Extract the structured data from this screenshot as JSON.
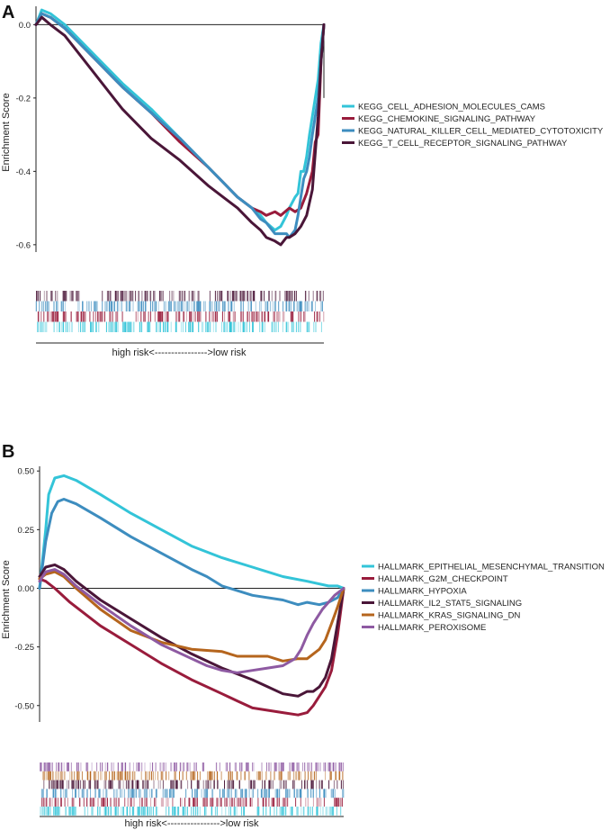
{
  "chart_data": [
    {
      "type": "line",
      "panel_label": "A",
      "ylabel": "Enrichment Score",
      "xlabel": "high risk<---------------->low risk",
      "ylim": [
        -0.62,
        0.05
      ],
      "yticks": [
        "0.0",
        "-0.2",
        "-0.4",
        "-0.6"
      ],
      "ytick_values": [
        0.0,
        -0.2,
        -0.4,
        -0.6
      ],
      "legend_position": "right",
      "x_range": [
        0,
        100
      ],
      "series": [
        {
          "name": "KEGG_CELL_ADHESION_MOLECULES_CAMS",
          "color": "#33c4d8",
          "x": [
            0,
            2,
            5,
            10,
            20,
            30,
            40,
            50,
            60,
            65,
            70,
            75,
            78,
            80,
            83,
            85,
            87,
            88,
            90,
            91,
            92,
            93,
            94,
            95,
            96,
            97,
            98,
            99,
            100
          ],
          "y": [
            0.0,
            0.04,
            0.03,
            0.0,
            -0.08,
            -0.16,
            -0.23,
            -0.31,
            -0.39,
            -0.43,
            -0.47,
            -0.5,
            -0.52,
            -0.54,
            -0.56,
            -0.55,
            -0.52,
            -0.5,
            -0.47,
            -0.46,
            -0.4,
            -0.4,
            -0.36,
            -0.3,
            -0.25,
            -0.2,
            -0.15,
            -0.05,
            0.0
          ]
        },
        {
          "name": "KEGG_CHEMOKINE_SIGNALING_PATHWAY",
          "color": "#991c3c",
          "x": [
            0,
            2,
            5,
            10,
            20,
            30,
            40,
            50,
            60,
            65,
            70,
            75,
            78,
            80,
            83,
            85,
            88,
            90,
            92,
            94,
            96,
            97,
            98,
            99,
            100
          ],
          "y": [
            0.0,
            0.03,
            0.02,
            -0.01,
            -0.09,
            -0.17,
            -0.24,
            -0.32,
            -0.39,
            -0.43,
            -0.47,
            -0.5,
            -0.51,
            -0.52,
            -0.51,
            -0.52,
            -0.5,
            -0.51,
            -0.5,
            -0.46,
            -0.4,
            -0.32,
            -0.3,
            -0.1,
            0.0
          ]
        },
        {
          "name": "KEGG_NATURAL_KILLER_CELL_MEDIATED_CYTOTOXICITY",
          "color": "#3d8dbf",
          "x": [
            0,
            2,
            5,
            10,
            20,
            30,
            40,
            50,
            60,
            65,
            70,
            75,
            78,
            80,
            83,
            85,
            87,
            88,
            90,
            91,
            92,
            93,
            94,
            95,
            96,
            97,
            98,
            99,
            100
          ],
          "y": [
            0.0,
            0.03,
            0.02,
            -0.01,
            -0.09,
            -0.17,
            -0.24,
            -0.31,
            -0.39,
            -0.43,
            -0.47,
            -0.5,
            -0.53,
            -0.54,
            -0.57,
            -0.57,
            -0.57,
            -0.58,
            -0.56,
            -0.52,
            -0.47,
            -0.42,
            -0.4,
            -0.36,
            -0.3,
            -0.25,
            -0.2,
            -0.1,
            0.0
          ]
        },
        {
          "name": "KEGG_T_CELL_RECEPTOR_SIGNALING_PATHWAY",
          "color": "#4a1638",
          "x": [
            0,
            2,
            5,
            10,
            20,
            30,
            40,
            50,
            60,
            65,
            70,
            75,
            78,
            80,
            83,
            85,
            87,
            88,
            90,
            92,
            94,
            96,
            97,
            98,
            99,
            100
          ],
          "y": [
            0.0,
            0.02,
            0.0,
            -0.03,
            -0.13,
            -0.23,
            -0.31,
            -0.37,
            -0.44,
            -0.47,
            -0.5,
            -0.54,
            -0.56,
            -0.58,
            -0.59,
            -0.6,
            -0.58,
            -0.58,
            -0.57,
            -0.55,
            -0.52,
            -0.45,
            -0.35,
            -0.25,
            -0.1,
            0.0
          ]
        }
      ]
    },
    {
      "type": "line",
      "panel_label": "B",
      "ylabel": "Enrichment Score",
      "xlabel": "high risk<---------------->low risk",
      "ylim": [
        -0.57,
        0.52
      ],
      "yticks": [
        "0.50",
        "0.25",
        "0.00",
        "-0.25",
        "-0.50"
      ],
      "ytick_values": [
        0.5,
        0.25,
        0.0,
        -0.25,
        -0.5
      ],
      "legend_position": "right",
      "x_range": [
        0,
        100
      ],
      "series": [
        {
          "name": "HALLMARK_EPITHELIAL_MESENCHYMAL_TRANSITION",
          "color": "#33c4d8",
          "x": [
            0,
            2,
            3,
            5,
            8,
            12,
            20,
            30,
            40,
            50,
            60,
            70,
            80,
            88,
            95,
            98,
            100
          ],
          "y": [
            0.0,
            0.25,
            0.4,
            0.47,
            0.48,
            0.46,
            0.4,
            0.32,
            0.25,
            0.18,
            0.13,
            0.09,
            0.05,
            0.03,
            0.01,
            0.01,
            0.0
          ]
        },
        {
          "name": "HALLMARK_G2M_CHECKPOINT",
          "color": "#991c3c",
          "x": [
            0,
            2,
            5,
            10,
            20,
            30,
            40,
            50,
            60,
            65,
            70,
            75,
            80,
            85,
            88,
            90,
            92,
            94,
            96,
            98,
            100
          ],
          "y": [
            0.04,
            0.03,
            0.0,
            -0.06,
            -0.16,
            -0.24,
            -0.32,
            -0.39,
            -0.45,
            -0.48,
            -0.51,
            -0.52,
            -0.53,
            -0.54,
            -0.53,
            -0.5,
            -0.46,
            -0.42,
            -0.35,
            -0.2,
            0.0
          ]
        },
        {
          "name": "HALLMARK_HYPOXIA",
          "color": "#3d8dbf",
          "x": [
            0,
            2,
            4,
            6,
            8,
            12,
            20,
            30,
            40,
            50,
            55,
            60,
            70,
            80,
            85,
            88,
            92,
            95,
            98,
            100
          ],
          "y": [
            0.0,
            0.2,
            0.32,
            0.37,
            0.38,
            0.36,
            0.3,
            0.22,
            0.15,
            0.08,
            0.05,
            0.01,
            -0.03,
            -0.05,
            -0.07,
            -0.06,
            -0.07,
            -0.06,
            -0.04,
            0.0
          ]
        },
        {
          "name": "HALLMARK_IL2_STAT5_SIGNALING",
          "color": "#4a1638",
          "x": [
            0,
            2,
            5,
            8,
            12,
            20,
            30,
            40,
            50,
            60,
            70,
            75,
            80,
            85,
            88,
            90,
            92,
            94,
            96,
            98,
            100
          ],
          "y": [
            0.05,
            0.09,
            0.1,
            0.08,
            0.03,
            -0.05,
            -0.13,
            -0.21,
            -0.28,
            -0.34,
            -0.39,
            -0.42,
            -0.45,
            -0.46,
            -0.44,
            -0.44,
            -0.42,
            -0.38,
            -0.3,
            -0.15,
            0.0
          ]
        },
        {
          "name": "HALLMARK_KRAS_SIGNALING_DN",
          "color": "#b5651d",
          "x": [
            0,
            2,
            5,
            8,
            12,
            20,
            30,
            40,
            50,
            60,
            65,
            70,
            75,
            80,
            85,
            88,
            90,
            92,
            94,
            96,
            98,
            100
          ],
          "y": [
            0.04,
            0.06,
            0.07,
            0.05,
            0.0,
            -0.09,
            -0.18,
            -0.23,
            -0.26,
            -0.27,
            -0.29,
            -0.29,
            -0.29,
            -0.31,
            -0.3,
            -0.3,
            -0.28,
            -0.26,
            -0.22,
            -0.15,
            -0.08,
            0.0
          ]
        },
        {
          "name": "HALLMARK_PEROXISOME",
          "color": "#8e5aa2",
          "x": [
            0,
            2,
            5,
            8,
            12,
            20,
            30,
            40,
            50,
            55,
            60,
            65,
            70,
            75,
            80,
            84,
            86,
            88,
            90,
            93,
            95,
            97,
            100
          ],
          "y": [
            0.03,
            0.07,
            0.08,
            0.06,
            0.01,
            -0.07,
            -0.16,
            -0.24,
            -0.3,
            -0.33,
            -0.35,
            -0.36,
            -0.35,
            -0.34,
            -0.33,
            -0.3,
            -0.26,
            -0.2,
            -0.15,
            -0.09,
            -0.06,
            -0.03,
            0.0
          ]
        }
      ]
    }
  ]
}
